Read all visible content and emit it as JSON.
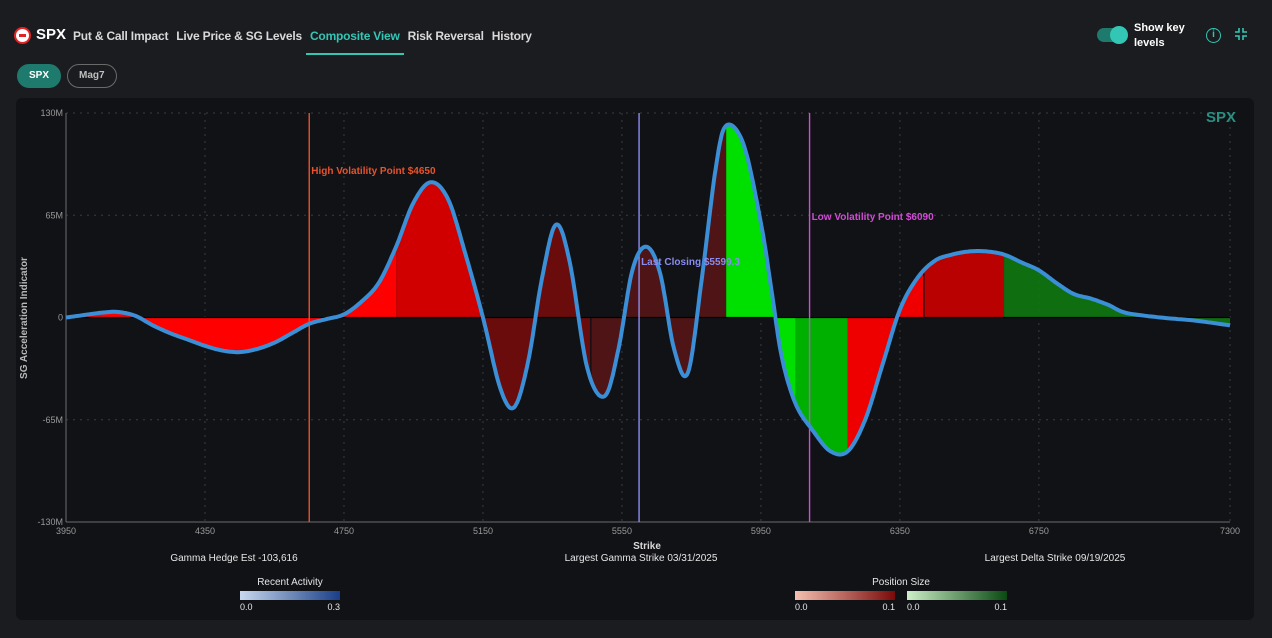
{
  "header": {
    "ticker": "SPX",
    "tabs": [
      {
        "label": "Put & Call Impact",
        "active": false
      },
      {
        "label": "Live Price & SG Levels",
        "active": false
      },
      {
        "label": "Composite View",
        "active": true
      },
      {
        "label": "Risk Reversal",
        "active": false
      },
      {
        "label": "History",
        "active": false
      }
    ],
    "toggle_label": "Show key levels",
    "toggle_on": true,
    "info_glyph": "i",
    "icons": [
      "logo-icon",
      "info-icon",
      "collapse-icon"
    ]
  },
  "chips": [
    {
      "label": "SPX",
      "active": true
    },
    {
      "label": "Mag7",
      "active": false
    }
  ],
  "colors": {
    "accent": "#34c6b4",
    "curve": "#3b8fd6",
    "high_vol": "#e8532b",
    "last_close": "#8a8cf0",
    "low_vol": "#d24bd6",
    "red": "#ff0000",
    "green": "#00e000"
  },
  "chart_data": {
    "type": "area",
    "watermark": "SPX",
    "xlabel": "Strike",
    "ylabel": "SG Acceleration Indicator",
    "xlim": [
      3950,
      7300
    ],
    "ylim": [
      -130,
      130
    ],
    "x_ticks": [
      "3950",
      "4350",
      "4750",
      "5150",
      "5550",
      "5950",
      "6350",
      "6750",
      "7300"
    ],
    "x_tick_values": [
      3950,
      4350,
      4750,
      5150,
      5550,
      5950,
      6350,
      6750,
      7300
    ],
    "y_ticks": [
      "130M",
      "65M",
      "0",
      "-65M",
      "-130M"
    ],
    "y_tick_values": [
      130,
      65,
      0,
      -65,
      -130
    ],
    "grid": true,
    "series": [
      {
        "x": [
          3950,
          4000,
          4050,
          4100,
          4150,
          4200,
          4250,
          4300,
          4350,
          4400,
          4450,
          4500,
          4550,
          4600,
          4650,
          4700,
          4750,
          4800,
          4850,
          4900,
          4950,
          5000,
          5050,
          5100,
          5150,
          5200,
          5240,
          5280,
          5320,
          5360,
          5400,
          5450,
          5500,
          5540,
          5580,
          5620,
          5660,
          5700,
          5740,
          5780,
          5820,
          5850,
          5900,
          5950,
          5980,
          6010,
          6050,
          6100,
          6150,
          6200,
          6250,
          6300,
          6350,
          6400,
          6450,
          6500,
          6550,
          6600,
          6650,
          6700,
          6750,
          6800,
          6850,
          6900,
          6950,
          7000,
          7100,
          7200,
          7300
        ],
        "y": [
          0,
          1.5,
          3,
          3.5,
          1,
          -5,
          -10,
          -14,
          -18,
          -21,
          -22,
          -20,
          -16,
          -10,
          -4,
          -1,
          2,
          10,
          22,
          45,
          73,
          86,
          75,
          40,
          0,
          -45,
          -57,
          -28,
          25,
          59,
          35,
          -32,
          -50,
          -20,
          30,
          45,
          28,
          -20,
          -35,
          25,
          95,
          122,
          110,
          60,
          18,
          -25,
          -55,
          -72,
          -85,
          -85,
          -65,
          -30,
          5,
          25,
          36,
          40,
          42,
          42,
          40,
          35,
          30,
          22,
          15,
          12,
          8,
          3,
          0,
          -2,
          -5
        ],
        "fill_segments": [
          {
            "x0": 3950,
            "x1": 4900,
            "color": "#ff0000",
            "opacity": 1.0
          },
          {
            "x0": 4900,
            "x1": 5150,
            "color": "#d00000",
            "opacity": 1.0
          },
          {
            "x0": 5150,
            "x1": 5460,
            "color": "#7a0a0a",
            "opacity": 0.85
          },
          {
            "x0": 5460,
            "x1": 5850,
            "color": "#6a1515",
            "opacity": 0.7
          },
          {
            "x0": 5850,
            "x1": 6050,
            "color": "#00e000",
            "opacity": 1.0
          },
          {
            "x0": 6050,
            "x1": 6200,
            "color": "#00b000",
            "opacity": 1.0
          },
          {
            "x0": 6200,
            "x1": 6420,
            "color": "#ee0000",
            "opacity": 1.0
          },
          {
            "x0": 6420,
            "x1": 6650,
            "color": "#cc0000",
            "opacity": 0.9
          },
          {
            "x0": 6650,
            "x1": 7300,
            "color": "#0f7a0f",
            "opacity": 0.9
          }
        ]
      }
    ],
    "annotations": [
      {
        "label": "High Volatility Point $4650",
        "x": 4650,
        "color": "#e8532b"
      },
      {
        "label": "Last Closing $5599.3",
        "x": 5599.3,
        "color": "#8a8cf0"
      },
      {
        "label": "Low Volatility Point $6090",
        "x": 6090,
        "color": "#d24bd6"
      }
    ],
    "footnotes": [
      "Gamma Hedge Est -103,616",
      "Largest Gamma Strike 03/31/2025",
      "Largest Delta Strike 09/19/2025"
    ],
    "legends": [
      {
        "title": "Recent Activity",
        "min": "0.0",
        "max": "0.3",
        "from": "#c8d8ee",
        "to": "#1a3f88"
      },
      {
        "title": "Position Size",
        "red_min": "0.0",
        "red_max": "0.1",
        "red_from": "#f4c0b0",
        "red_to": "#7a0a0a",
        "green_min": "0.0",
        "green_max": "0.1",
        "green_from": "#cdeec8",
        "green_to": "#0a4a12"
      }
    ]
  }
}
